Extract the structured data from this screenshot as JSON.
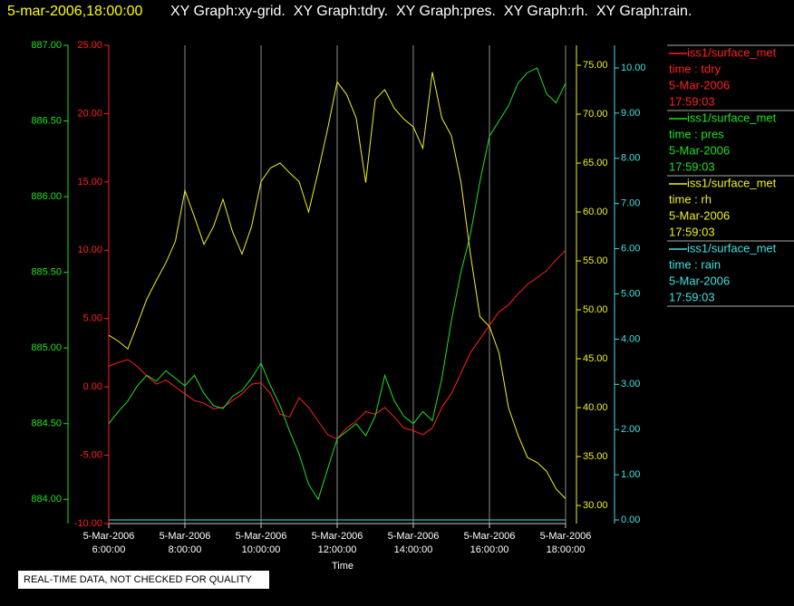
{
  "chart_data": {
    "type": "line",
    "title": "5-mar-2006,18:00:00",
    "subtitle": "XY Graph:xy-grid.  XY Graph:tdry.  XY Graph:pres.  XY Graph:rh.  XY Graph:rain.",
    "x_label": "Time",
    "note": "REAL-TIME DATA, NOT CHECKED FOR QUALITY",
    "grid": true,
    "xlim": [
      "2006-03-05 06:00",
      "2006-03-05 18:00"
    ],
    "xticks": [
      {
        "value": "2006-03-05 06:00",
        "label": [
          "5-Mar-2006",
          "6:00:00"
        ]
      },
      {
        "value": "2006-03-05 08:00",
        "label": [
          "5-Mar-2006",
          "8:00:00"
        ]
      },
      {
        "value": "2006-03-05 10:00",
        "label": [
          "5-Mar-2006",
          "10:00:00"
        ]
      },
      {
        "value": "2006-03-05 12:00",
        "label": [
          "5-Mar-2006",
          "12:00:00"
        ]
      },
      {
        "value": "2006-03-05 14:00",
        "label": [
          "5-Mar-2006",
          "14:00:00"
        ]
      },
      {
        "value": "2006-03-05 16:00",
        "label": [
          "5-Mar-2006",
          "16:00:00"
        ]
      },
      {
        "value": "2006-03-05 18:00",
        "label": [
          "5-Mar-2006",
          "18:00:00"
        ]
      }
    ],
    "x": [
      "2006-03-05 06:00",
      "2006-03-05 06:15",
      "2006-03-05 06:30",
      "2006-03-05 06:45",
      "2006-03-05 07:00",
      "2006-03-05 07:15",
      "2006-03-05 07:30",
      "2006-03-05 07:45",
      "2006-03-05 08:00",
      "2006-03-05 08:15",
      "2006-03-05 08:30",
      "2006-03-05 08:45",
      "2006-03-05 09:00",
      "2006-03-05 09:15",
      "2006-03-05 09:30",
      "2006-03-05 09:45",
      "2006-03-05 10:00",
      "2006-03-05 10:15",
      "2006-03-05 10:30",
      "2006-03-05 10:45",
      "2006-03-05 11:00",
      "2006-03-05 11:15",
      "2006-03-05 11:30",
      "2006-03-05 11:45",
      "2006-03-05 12:00",
      "2006-03-05 12:15",
      "2006-03-05 12:30",
      "2006-03-05 12:45",
      "2006-03-05 13:00",
      "2006-03-05 13:15",
      "2006-03-05 13:30",
      "2006-03-05 13:45",
      "2006-03-05 14:00",
      "2006-03-05 14:15",
      "2006-03-05 14:30",
      "2006-03-05 14:45",
      "2006-03-05 15:00",
      "2006-03-05 15:15",
      "2006-03-05 15:30",
      "2006-03-05 15:45",
      "2006-03-05 16:00",
      "2006-03-05 16:15",
      "2006-03-05 16:30",
      "2006-03-05 16:45",
      "2006-03-05 17:00",
      "2006-03-05 17:15",
      "2006-03-05 17:30",
      "2006-03-05 17:45",
      "2006-03-05 18:00"
    ],
    "series": [
      {
        "name": "iss1/surface_met",
        "legend_text": [
          "time : tdry",
          "5-Mar-2006",
          "17:59:03"
        ],
        "color": "#ff2020",
        "ylim": [
          -10,
          25
        ],
        "yticks": [
          {
            "value": 25,
            "label": "25.00"
          },
          {
            "value": 20,
            "label": "20.00"
          },
          {
            "value": 15,
            "label": "15.00"
          },
          {
            "value": 10,
            "label": "10.00"
          },
          {
            "value": 5,
            "label": "5.00"
          },
          {
            "value": 0,
            "label": "0.00"
          },
          {
            "value": -5,
            "label": "-5.00"
          },
          {
            "value": -10,
            "label": "-10.00"
          }
        ],
        "values": [
          1.5,
          1.8,
          2.0,
          1.5,
          0.8,
          0.2,
          0.5,
          0.0,
          -0.5,
          -1.0,
          -1.2,
          -1.6,
          -1.5,
          -1.0,
          -0.5,
          0.2,
          0.3,
          -0.5,
          -2.0,
          -2.2,
          -0.8,
          -1.5,
          -2.5,
          -3.5,
          -3.8,
          -3.0,
          -2.5,
          -1.8,
          -2.0,
          -1.5,
          -2.2,
          -3.0,
          -3.2,
          -3.5,
          -3.0,
          -1.5,
          -0.5,
          1.0,
          2.5,
          3.5,
          4.5,
          5.5,
          6.0,
          6.8,
          7.5,
          8.0,
          8.5,
          9.3,
          10.0
        ]
      },
      {
        "name": "iss1/surface_met",
        "legend_text": [
          "time : pres",
          "5-Mar-2006",
          "17:59:03"
        ],
        "color": "#20e020",
        "ylim": [
          883.84,
          887.0
        ],
        "yticks": [
          {
            "value": 884,
            "label": "884.00"
          },
          {
            "value": 884.5,
            "label": "884.50"
          },
          {
            "value": 885,
            "label": "885.00"
          },
          {
            "value": 885.5,
            "label": "885.50"
          },
          {
            "value": 886,
            "label": "886.00"
          },
          {
            "value": 886.5,
            "label": "886.50"
          },
          {
            "value": 887,
            "label": "887.00"
          }
        ],
        "values": [
          884.5,
          884.58,
          884.65,
          884.75,
          884.82,
          884.78,
          884.85,
          884.8,
          884.75,
          884.82,
          884.7,
          884.62,
          884.6,
          884.68,
          884.72,
          884.8,
          884.9,
          884.75,
          884.62,
          884.45,
          884.3,
          884.1,
          884.0,
          884.2,
          884.4,
          884.45,
          884.5,
          884.42,
          884.55,
          884.82,
          884.65,
          884.55,
          884.5,
          884.58,
          884.52,
          884.8,
          885.18,
          885.5,
          885.75,
          886.1,
          886.4,
          886.5,
          886.6,
          886.75,
          886.82,
          886.85,
          886.68,
          886.62,
          886.75
        ]
      },
      {
        "name": "iss1/surface_met",
        "legend_text": [
          "time : rh",
          "5-Mar-2006",
          "17:59:03"
        ],
        "color": "#f0f020",
        "ylim": [
          28.15,
          77.04
        ],
        "yticks": [
          {
            "value": 30,
            "label": "30.00"
          },
          {
            "value": 35,
            "label": "35.00"
          },
          {
            "value": 40,
            "label": "40.00"
          },
          {
            "value": 45,
            "label": "45.00"
          },
          {
            "value": 50,
            "label": "50.00"
          },
          {
            "value": 55,
            "label": "55.00"
          },
          {
            "value": 60,
            "label": "60.00"
          },
          {
            "value": 65,
            "label": "65.00"
          },
          {
            "value": 70,
            "label": "70.00"
          },
          {
            "value": 75,
            "label": "75.00"
          }
        ],
        "values": [
          47.4,
          46.8,
          46.0,
          48.5,
          51.1,
          53.0,
          54.8,
          57.0,
          62.2,
          59.5,
          56.7,
          58.5,
          61.3,
          58.0,
          55.7,
          58.5,
          63.1,
          64.5,
          65.0,
          64.0,
          63.1,
          60.0,
          64.1,
          68.5,
          73.3,
          72.0,
          69.6,
          63.0,
          71.5,
          72.5,
          70.6,
          69.5,
          68.7,
          66.5,
          74.3,
          69.6,
          67.8,
          63.1,
          55.7,
          49.3,
          48.3,
          45.6,
          40.0,
          37.2,
          34.9,
          34.4,
          33.5,
          31.7,
          30.7
        ]
      },
      {
        "name": "iss1/surface_met",
        "legend_text": [
          "time : rain",
          "5-Mar-2006",
          "17:59:03"
        ],
        "color": "#40e0e0",
        "ylim": [
          -0.08,
          10.5
        ],
        "yticks": [
          {
            "value": 0,
            "label": "0.00"
          },
          {
            "value": 1,
            "label": "1.00"
          },
          {
            "value": 2,
            "label": "2.00"
          },
          {
            "value": 3,
            "label": "3.00"
          },
          {
            "value": 4,
            "label": "4.00"
          },
          {
            "value": 5,
            "label": "5.00"
          },
          {
            "value": 6,
            "label": "6.00"
          },
          {
            "value": 7,
            "label": "7.00"
          },
          {
            "value": 8,
            "label": "8.00"
          },
          {
            "value": 9,
            "label": "9.00"
          },
          {
            "value": 10,
            "label": "10.00"
          }
        ],
        "values": [
          0,
          0,
          0,
          0,
          0,
          0,
          0,
          0,
          0,
          0,
          0,
          0,
          0,
          0,
          0,
          0,
          0,
          0,
          0,
          0,
          0,
          0,
          0,
          0,
          0,
          0,
          0,
          0,
          0,
          0,
          0,
          0,
          0,
          0,
          0,
          0,
          0,
          0,
          0,
          0,
          0,
          0,
          0,
          0,
          0,
          0,
          0,
          0,
          0
        ]
      }
    ]
  }
}
